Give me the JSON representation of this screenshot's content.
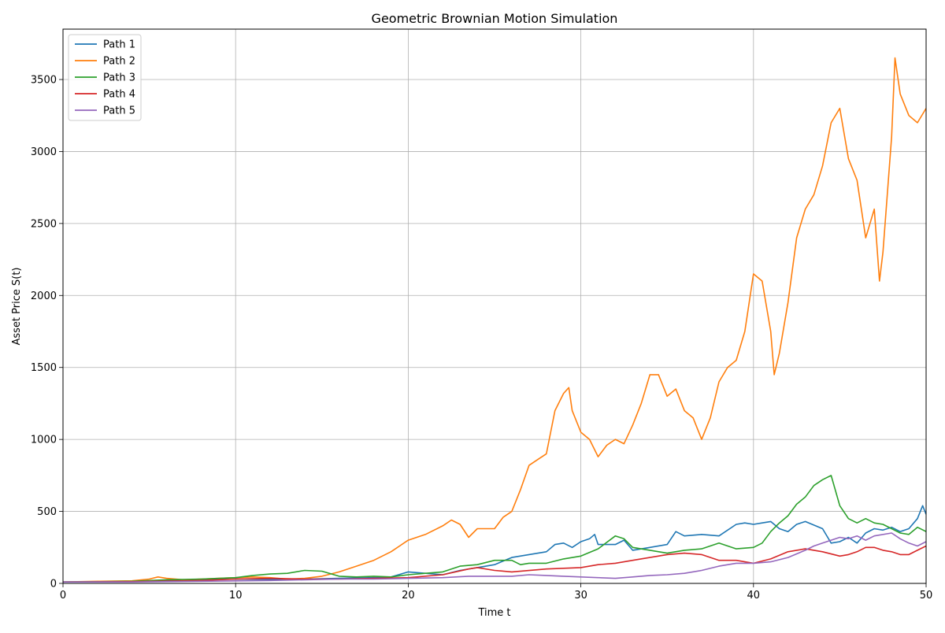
{
  "chart_data": {
    "type": "line",
    "title": "Geometric Brownian Motion Simulation",
    "xlabel": "Time t",
    "ylabel": "Asset Price S(t)",
    "xlim": [
      0,
      50
    ],
    "ylim": [
      0,
      3850
    ],
    "xticks": [
      0,
      10,
      20,
      30,
      40,
      50
    ],
    "yticks": [
      0,
      500,
      1000,
      1500,
      2000,
      2500,
      3000,
      3500
    ],
    "grid": true,
    "legend_position": "top-left",
    "series": [
      {
        "name": "Path 1",
        "color": "#1f77b4",
        "points": [
          [
            0,
            10
          ],
          [
            2,
            12
          ],
          [
            4,
            14
          ],
          [
            6,
            20
          ],
          [
            8,
            25
          ],
          [
            10,
            30
          ],
          [
            12,
            28
          ],
          [
            14,
            30
          ],
          [
            16,
            35
          ],
          [
            18,
            40
          ],
          [
            19,
            45
          ],
          [
            20,
            80
          ],
          [
            21,
            70
          ],
          [
            22,
            60
          ],
          [
            23,
            90
          ],
          [
            24,
            110
          ],
          [
            25,
            130
          ],
          [
            26,
            180
          ],
          [
            27,
            200
          ],
          [
            28,
            220
          ],
          [
            28.5,
            270
          ],
          [
            29,
            280
          ],
          [
            29.5,
            250
          ],
          [
            30,
            290
          ],
          [
            30.5,
            310
          ],
          [
            30.8,
            340
          ],
          [
            31,
            270
          ],
          [
            32,
            270
          ],
          [
            32.5,
            300
          ],
          [
            33,
            230
          ],
          [
            34,
            250
          ],
          [
            35,
            270
          ],
          [
            35.5,
            360
          ],
          [
            36,
            330
          ],
          [
            37,
            340
          ],
          [
            38,
            330
          ],
          [
            39,
            410
          ],
          [
            39.5,
            420
          ],
          [
            40,
            410
          ],
          [
            40.5,
            420
          ],
          [
            41,
            430
          ],
          [
            41.5,
            380
          ],
          [
            42,
            360
          ],
          [
            42.5,
            410
          ],
          [
            43,
            430
          ],
          [
            44,
            380
          ],
          [
            44.5,
            280
          ],
          [
            45,
            290
          ],
          [
            45.5,
            320
          ],
          [
            46,
            280
          ],
          [
            46.5,
            350
          ],
          [
            47,
            380
          ],
          [
            47.5,
            370
          ],
          [
            48,
            390
          ],
          [
            48.5,
            360
          ],
          [
            49,
            380
          ],
          [
            49.5,
            450
          ],
          [
            49.8,
            540
          ],
          [
            50,
            480
          ]
        ]
      },
      {
        "name": "Path 2",
        "color": "#ff7f0e",
        "points": [
          [
            0,
            10
          ],
          [
            2,
            15
          ],
          [
            4,
            18
          ],
          [
            5,
            30
          ],
          [
            5.5,
            45
          ],
          [
            6,
            35
          ],
          [
            7,
            25
          ],
          [
            8,
            30
          ],
          [
            9,
            35
          ],
          [
            10,
            40
          ],
          [
            11,
            45
          ],
          [
            12,
            40
          ],
          [
            13,
            30
          ],
          [
            14,
            35
          ],
          [
            15,
            50
          ],
          [
            16,
            80
          ],
          [
            17,
            120
          ],
          [
            18,
            160
          ],
          [
            19,
            220
          ],
          [
            20,
            300
          ],
          [
            21,
            340
          ],
          [
            22,
            400
          ],
          [
            22.5,
            440
          ],
          [
            23,
            410
          ],
          [
            23.5,
            320
          ],
          [
            24,
            380
          ],
          [
            25,
            380
          ],
          [
            25.5,
            460
          ],
          [
            26,
            500
          ],
          [
            26.5,
            650
          ],
          [
            27,
            820
          ],
          [
            27.5,
            860
          ],
          [
            28,
            900
          ],
          [
            28.5,
            1200
          ],
          [
            29,
            1320
          ],
          [
            29.3,
            1360
          ],
          [
            29.5,
            1200
          ],
          [
            30,
            1050
          ],
          [
            30.5,
            1000
          ],
          [
            31,
            880
          ],
          [
            31.5,
            960
          ],
          [
            32,
            1000
          ],
          [
            32.5,
            970
          ],
          [
            33,
            1100
          ],
          [
            33.5,
            1250
          ],
          [
            34,
            1450
          ],
          [
            34.5,
            1450
          ],
          [
            35,
            1300
          ],
          [
            35.5,
            1350
          ],
          [
            36,
            1200
          ],
          [
            36.5,
            1150
          ],
          [
            37,
            1000
          ],
          [
            37.5,
            1150
          ],
          [
            38,
            1400
          ],
          [
            38.5,
            1500
          ],
          [
            39,
            1550
          ],
          [
            39.5,
            1750
          ],
          [
            40,
            2150
          ],
          [
            40.5,
            2100
          ],
          [
            41,
            1750
          ],
          [
            41.2,
            1450
          ],
          [
            41.5,
            1600
          ],
          [
            42,
            1950
          ],
          [
            42.5,
            2400
          ],
          [
            43,
            2600
          ],
          [
            43.5,
            2700
          ],
          [
            44,
            2900
          ],
          [
            44.5,
            3200
          ],
          [
            45,
            3300
          ],
          [
            45.5,
            2950
          ],
          [
            46,
            2800
          ],
          [
            46.5,
            2400
          ],
          [
            47,
            2600
          ],
          [
            47.3,
            2100
          ],
          [
            47.5,
            2300
          ],
          [
            48,
            3100
          ],
          [
            48.2,
            3650
          ],
          [
            48.5,
            3400
          ],
          [
            49,
            3250
          ],
          [
            49.5,
            3200
          ],
          [
            50,
            3300
          ]
        ]
      },
      {
        "name": "Path 3",
        "color": "#2ca02c",
        "points": [
          [
            0,
            10
          ],
          [
            2,
            12
          ],
          [
            4,
            15
          ],
          [
            6,
            25
          ],
          [
            8,
            30
          ],
          [
            10,
            40
          ],
          [
            11,
            55
          ],
          [
            12,
            65
          ],
          [
            13,
            70
          ],
          [
            14,
            90
          ],
          [
            15,
            85
          ],
          [
            16,
            50
          ],
          [
            17,
            45
          ],
          [
            18,
            50
          ],
          [
            19,
            45
          ],
          [
            20,
            60
          ],
          [
            21,
            70
          ],
          [
            22,
            80
          ],
          [
            23,
            120
          ],
          [
            24,
            130
          ],
          [
            25,
            160
          ],
          [
            26,
            160
          ],
          [
            26.5,
            130
          ],
          [
            27,
            140
          ],
          [
            28,
            140
          ],
          [
            29,
            170
          ],
          [
            30,
            190
          ],
          [
            31,
            240
          ],
          [
            32,
            330
          ],
          [
            32.5,
            310
          ],
          [
            33,
            250
          ],
          [
            34,
            230
          ],
          [
            35,
            210
          ],
          [
            36,
            230
          ],
          [
            37,
            240
          ],
          [
            38,
            280
          ],
          [
            39,
            240
          ],
          [
            40,
            250
          ],
          [
            40.5,
            280
          ],
          [
            41,
            360
          ],
          [
            41.5,
            420
          ],
          [
            42,
            470
          ],
          [
            42.5,
            550
          ],
          [
            43,
            600
          ],
          [
            43.5,
            680
          ],
          [
            44,
            720
          ],
          [
            44.5,
            750
          ],
          [
            45,
            540
          ],
          [
            45.5,
            450
          ],
          [
            46,
            420
          ],
          [
            46.5,
            450
          ],
          [
            47,
            420
          ],
          [
            47.5,
            410
          ],
          [
            48,
            380
          ],
          [
            48.5,
            350
          ],
          [
            49,
            340
          ],
          [
            49.5,
            390
          ],
          [
            50,
            360
          ]
        ]
      },
      {
        "name": "Path 4",
        "color": "#d62728",
        "points": [
          [
            0,
            10
          ],
          [
            4,
            12
          ],
          [
            8,
            20
          ],
          [
            10,
            30
          ],
          [
            12,
            35
          ],
          [
            14,
            30
          ],
          [
            16,
            30
          ],
          [
            18,
            35
          ],
          [
            20,
            40
          ],
          [
            22,
            60
          ],
          [
            23.5,
            100
          ],
          [
            24,
            110
          ],
          [
            25,
            90
          ],
          [
            26,
            80
          ],
          [
            28,
            100
          ],
          [
            30,
            110
          ],
          [
            31,
            130
          ],
          [
            32,
            140
          ],
          [
            33,
            160
          ],
          [
            34,
            180
          ],
          [
            35,
            200
          ],
          [
            36,
            210
          ],
          [
            37,
            200
          ],
          [
            38,
            160
          ],
          [
            39,
            160
          ],
          [
            40,
            140
          ],
          [
            41,
            170
          ],
          [
            42,
            220
          ],
          [
            43,
            240
          ],
          [
            44,
            220
          ],
          [
            45,
            190
          ],
          [
            45.5,
            200
          ],
          [
            46,
            220
          ],
          [
            46.5,
            250
          ],
          [
            47,
            250
          ],
          [
            47.5,
            230
          ],
          [
            48,
            220
          ],
          [
            48.5,
            200
          ],
          [
            49,
            200
          ],
          [
            49.5,
            230
          ],
          [
            50,
            260
          ]
        ]
      },
      {
        "name": "Path 5",
        "color": "#9467bd",
        "points": [
          [
            0,
            10
          ],
          [
            4,
            10
          ],
          [
            8,
            15
          ],
          [
            12,
            20
          ],
          [
            14,
            25
          ],
          [
            16,
            30
          ],
          [
            18,
            30
          ],
          [
            20,
            35
          ],
          [
            22,
            40
          ],
          [
            23.5,
            50
          ],
          [
            25,
            50
          ],
          [
            26,
            50
          ],
          [
            27,
            60
          ],
          [
            28,
            55
          ],
          [
            29,
            50
          ],
          [
            30,
            45
          ],
          [
            31,
            40
          ],
          [
            32,
            35
          ],
          [
            33,
            45
          ],
          [
            34,
            55
          ],
          [
            35,
            60
          ],
          [
            36,
            70
          ],
          [
            37,
            90
          ],
          [
            38,
            120
          ],
          [
            39,
            140
          ],
          [
            40,
            140
          ],
          [
            41,
            150
          ],
          [
            42,
            180
          ],
          [
            43,
            230
          ],
          [
            43.5,
            260
          ],
          [
            44,
            280
          ],
          [
            44.5,
            300
          ],
          [
            45,
            320
          ],
          [
            45.5,
            310
          ],
          [
            46,
            330
          ],
          [
            46.5,
            300
          ],
          [
            47,
            330
          ],
          [
            48,
            350
          ],
          [
            48.5,
            310
          ],
          [
            49,
            280
          ],
          [
            49.5,
            260
          ],
          [
            50,
            290
          ]
        ]
      }
    ]
  }
}
